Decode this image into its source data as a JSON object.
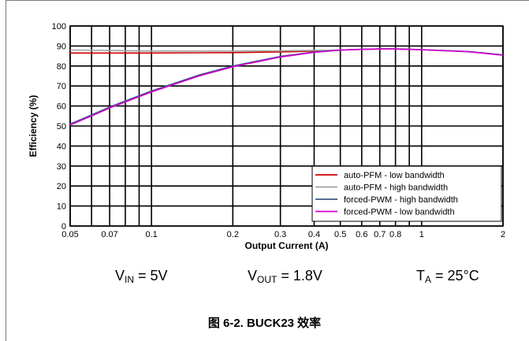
{
  "conditions": {
    "vin": {
      "symbol": "V",
      "sub": "IN",
      "rest": " = 5V"
    },
    "vout": {
      "symbol": "V",
      "sub": "OUT",
      "rest": " = 1.8V"
    },
    "ta": {
      "symbol": "T",
      "sub": "A",
      "rest": " = 25°C"
    }
  },
  "caption": "图 6-2. BUCK23 效率",
  "chart_data": {
    "type": "line",
    "title": "",
    "xlabel": "Output Current (A)",
    "ylabel": "Efficiency (%)",
    "xscale": "log",
    "xlim": [
      0.05,
      2
    ],
    "ylim": [
      0,
      100
    ],
    "xticks": [
      0.05,
      0.07,
      0.1,
      0.2,
      0.3,
      0.4,
      0.5,
      0.6,
      0.7,
      0.8,
      1,
      2
    ],
    "xtick_labels": [
      "0.05",
      "0.07",
      "0.1",
      "0.2",
      "0.3",
      "0.4",
      "0.5",
      "0.6",
      "0.7",
      "0.8",
      "1",
      "2"
    ],
    "x_gridlines": [
      0.05,
      0.06,
      0.07,
      0.08,
      0.09,
      0.1,
      0.2,
      0.3,
      0.4,
      0.5,
      0.6,
      0.7,
      0.8,
      0.9,
      1,
      2
    ],
    "yticks": [
      0,
      10,
      20,
      30,
      40,
      50,
      60,
      70,
      80,
      90,
      100
    ],
    "grid": true,
    "legend_position": "bottom-right",
    "series": [
      {
        "name": "auto-PFM - low bandwidth",
        "color": "#cc0000",
        "x": [
          0.05,
          0.1,
          0.2,
          0.3,
          0.4,
          0.5,
          0.6,
          0.7,
          0.8,
          1.0,
          1.5,
          2.0
        ],
        "y": [
          86.5,
          86.5,
          86.7,
          87.0,
          87.5,
          88.0,
          88.3,
          88.5,
          88.5,
          88.2,
          87.2,
          85.5
        ]
      },
      {
        "name": "auto-PFM - high bandwidth",
        "color": "#a0a0a0",
        "x": [
          0.05,
          0.1,
          0.2,
          0.3,
          0.4,
          0.5,
          0.6,
          0.7,
          0.8,
          1.0,
          1.5,
          2.0
        ],
        "y": [
          88.0,
          87.5,
          87.5,
          87.6,
          87.8,
          88.0,
          88.3,
          88.5,
          88.5,
          88.2,
          87.2,
          85.5
        ]
      },
      {
        "name": "forced-PWM - high bandwidth",
        "color": "#3a5a80",
        "x": [
          0.05,
          0.06,
          0.07,
          0.08,
          0.1,
          0.15,
          0.2,
          0.3,
          0.4,
          0.5,
          0.6,
          0.7,
          0.8,
          1.0,
          1.5,
          2.0
        ],
        "y": [
          51.0,
          55.5,
          59.5,
          62.5,
          67.5,
          75.5,
          80.0,
          84.8,
          87.0,
          88.0,
          88.4,
          88.6,
          88.6,
          88.2,
          87.2,
          85.5
        ]
      },
      {
        "name": "forced-PWM - low bandwidth",
        "color": "#d400d4",
        "x": [
          0.05,
          0.06,
          0.07,
          0.08,
          0.1,
          0.15,
          0.2,
          0.3,
          0.4,
          0.5,
          0.6,
          0.7,
          0.8,
          1.0,
          1.5,
          2.0
        ],
        "y": [
          50.5,
          55.0,
          59.0,
          62.0,
          67.0,
          75.0,
          79.6,
          84.5,
          86.8,
          87.9,
          88.3,
          88.5,
          88.5,
          88.1,
          87.1,
          85.4
        ]
      }
    ]
  }
}
